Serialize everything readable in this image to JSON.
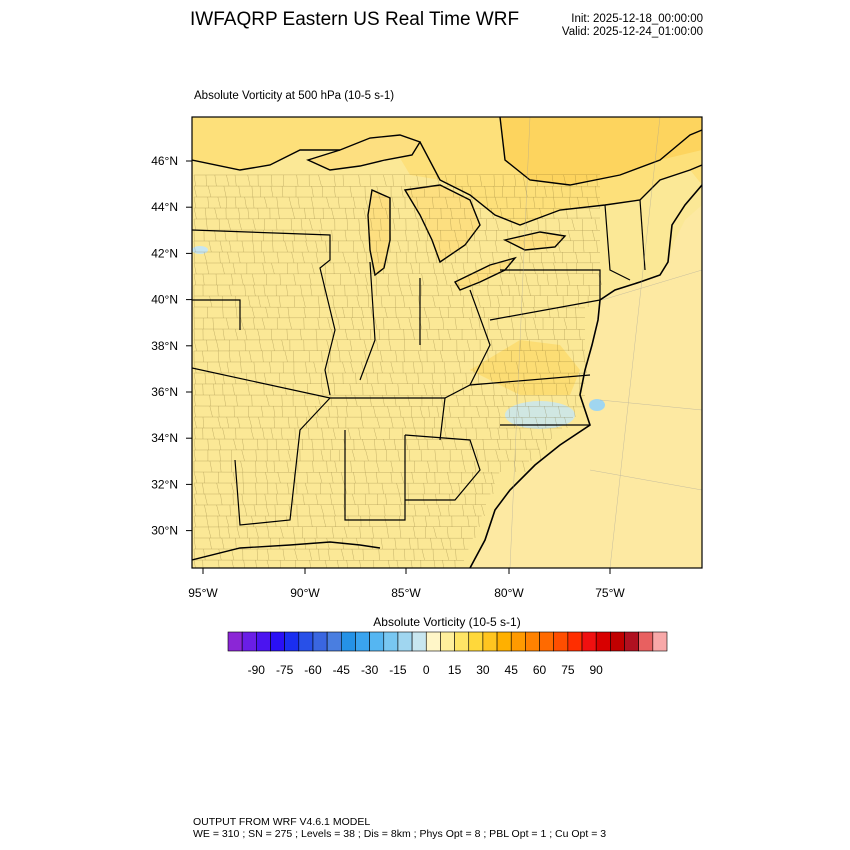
{
  "header": {
    "title": "IWFAQRP Eastern US Real Time WRF",
    "init": "Init: 2025-12-18_00:00:00",
    "valid": "Valid: 2025-12-24_01:00:00"
  },
  "map": {
    "field_title": "Absolute Vorticity at 500 hPa   (10-5 s-1)",
    "lat_labels": [
      "46°N",
      "44°N",
      "42°N",
      "40°N",
      "38°N",
      "36°N",
      "34°N",
      "32°N",
      "30°N"
    ],
    "lon_labels": [
      "95°W",
      "90°W",
      "85°W",
      "80°W",
      "75°W"
    ],
    "land_color": "#fbe896",
    "ocean_color": "#fde9a2",
    "lake_color": "#fddf80",
    "high_color": "#fdd45e",
    "coast_color": "#000000"
  },
  "colorbar": {
    "title": "Absolute Vorticity  (10-5 s-1)",
    "tick_labels": [
      "-90",
      "-75",
      "-60",
      "-45",
      "-30",
      "-15",
      "0",
      "15",
      "30",
      "45",
      "60",
      "75",
      "90"
    ],
    "colors": [
      "#8b26d6",
      "#6a1ee6",
      "#4b14f0",
      "#2a10f5",
      "#1a2ef0",
      "#2850e8",
      "#3a66e0",
      "#4a7ee0",
      "#2592e6",
      "#3aa4ef",
      "#55b6f2",
      "#78c7f2",
      "#a0d6f0",
      "#c8e6f0",
      "#fff6c8",
      "#ffef9c",
      "#ffe566",
      "#ffd83a",
      "#ffc520",
      "#ffb000",
      "#ff9a00",
      "#ff8200",
      "#ff6a00",
      "#ff4e00",
      "#ff2e00",
      "#f01010",
      "#d80000",
      "#c00000",
      "#b01020",
      "#e86060",
      "#f8a8a8"
    ]
  },
  "footer": {
    "line1": "OUTPUT FROM WRF V4.6.1 MODEL",
    "line2": "WE = 310 ; SN = 275 ; Levels = 38 ; Dis = 8km ; Phys Opt = 8 ; PBL Opt = 1 ; Cu Opt = 3"
  }
}
